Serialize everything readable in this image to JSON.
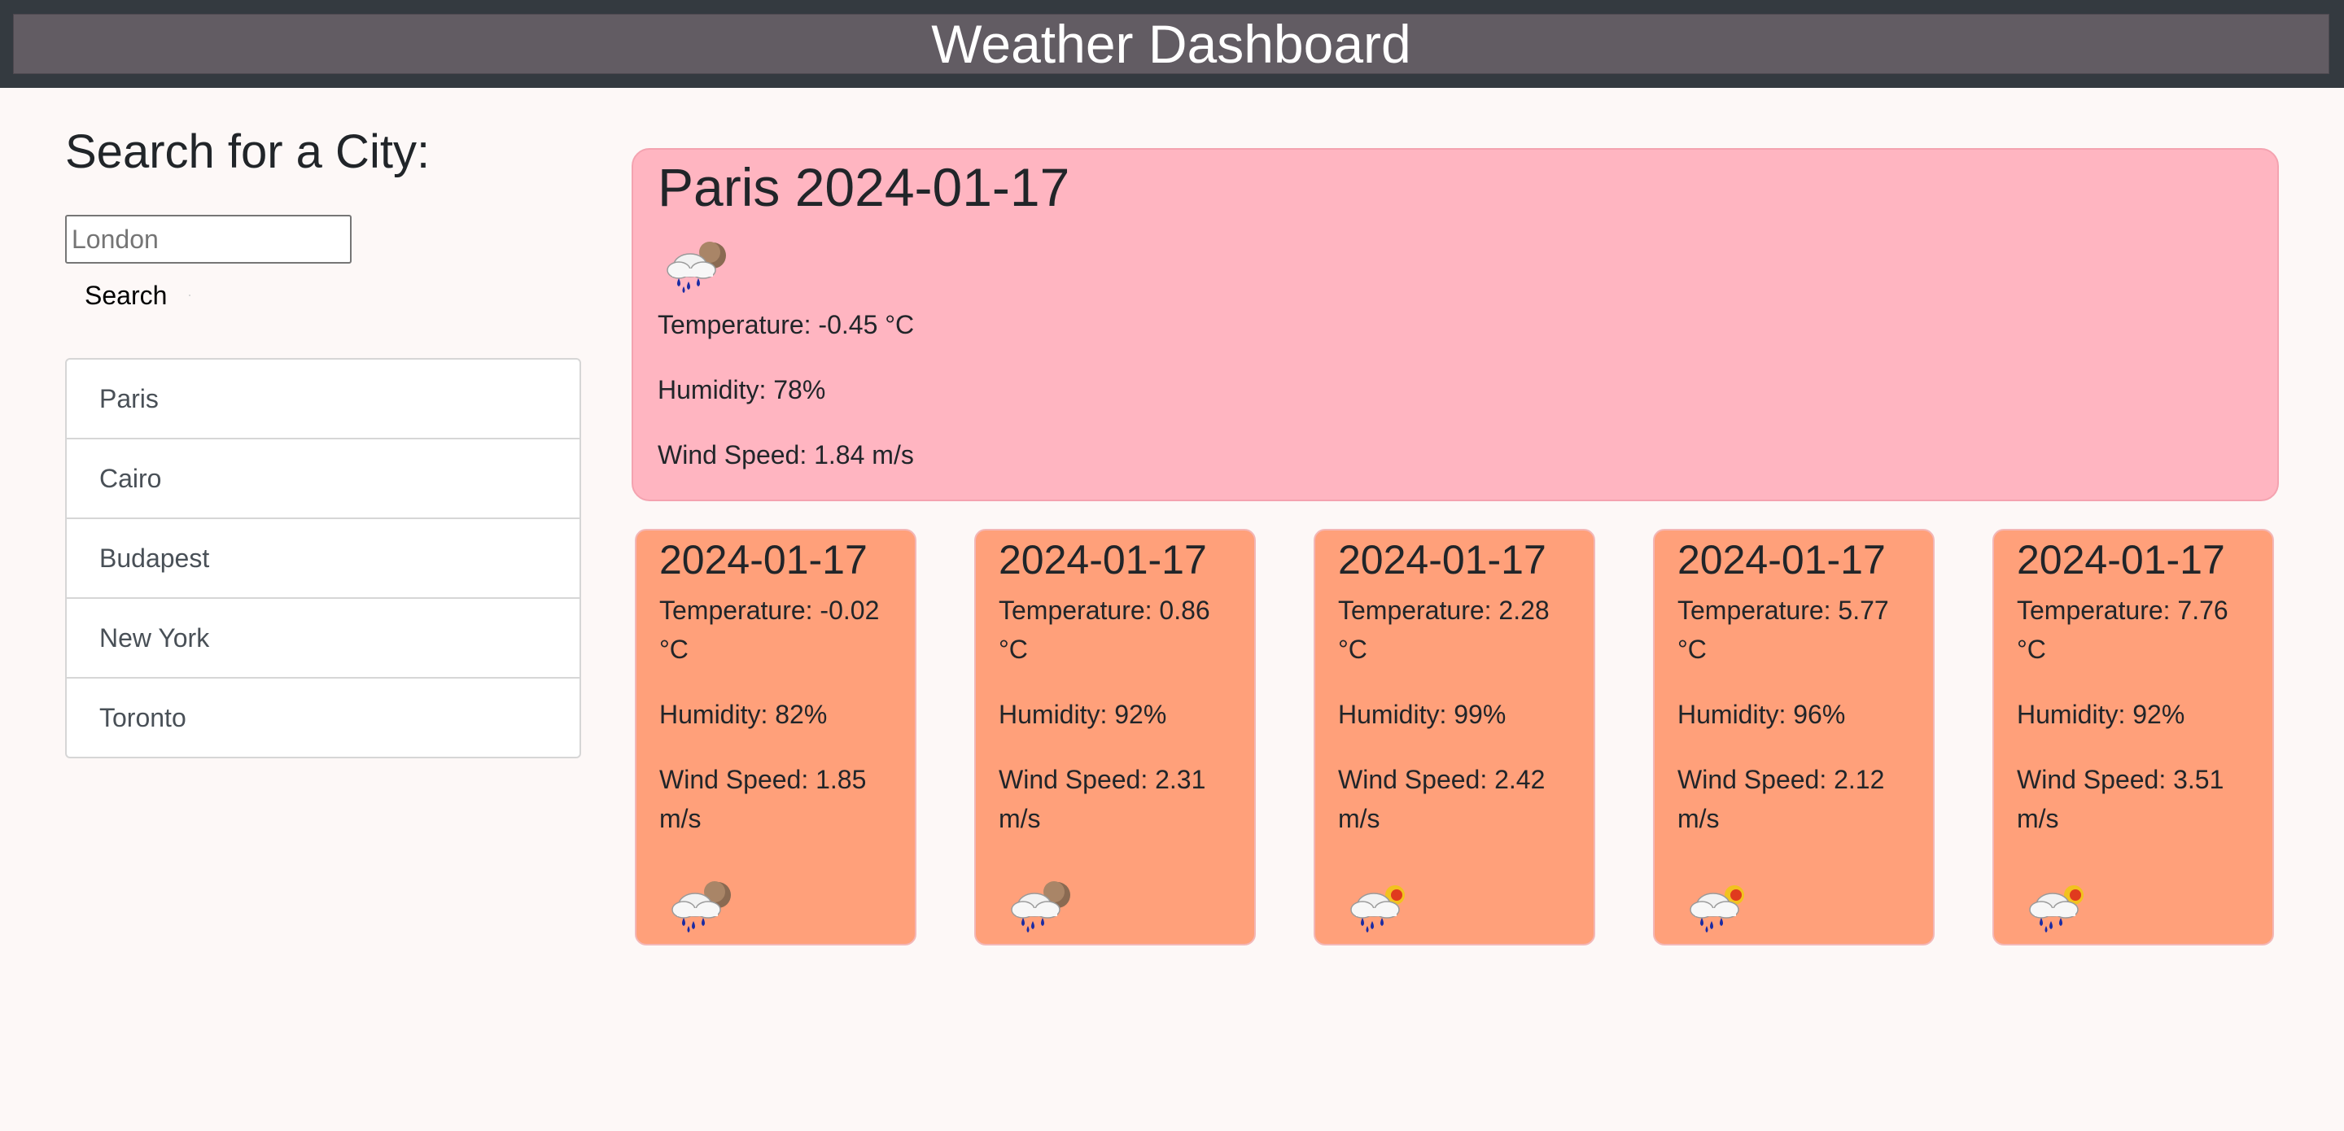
{
  "header": {
    "title": "Weather Dashboard"
  },
  "search": {
    "heading": "Search for a City:",
    "placeholder": "London",
    "button_label": "Search"
  },
  "history": {
    "cities": [
      "Paris",
      "Cairo",
      "Budapest",
      "New York",
      "Toronto"
    ]
  },
  "current": {
    "title": "Paris 2024-01-17",
    "icon": "rain-cloud-night-icon",
    "temperature": "Temperature: -0.45 °C",
    "humidity": "Humidity: 78%",
    "wind": "Wind Speed: 1.84 m/s"
  },
  "forecast": [
    {
      "date": "2024-01-17",
      "temperature": "Temperature: -0.02 °C",
      "humidity": "Humidity: 82%",
      "wind": "Wind Speed: 1.85 m/s",
      "icon": "rain-cloud-night-icon"
    },
    {
      "date": "2024-01-17",
      "temperature": "Temperature: 0.86 °C",
      "humidity": "Humidity: 92%",
      "wind": "Wind Speed: 2.31 m/s",
      "icon": "rain-cloud-night-icon"
    },
    {
      "date": "2024-01-17",
      "temperature": "Temperature: 2.28 °C",
      "humidity": "Humidity: 99%",
      "wind": "Wind Speed: 2.42 m/s",
      "icon": "rain-cloud-sun-icon"
    },
    {
      "date": "2024-01-17",
      "temperature": "Temperature: 5.77 °C",
      "humidity": "Humidity: 96%",
      "wind": "Wind Speed: 2.12 m/s",
      "icon": "rain-cloud-sun-icon"
    },
    {
      "date": "2024-01-17",
      "temperature": "Temperature: 7.76 °C",
      "humidity": "Humidity: 92%",
      "wind": "Wind Speed: 3.51 m/s",
      "icon": "rain-cloud-sun-icon"
    }
  ],
  "colors": {
    "header_bg": "#343a40",
    "header_inner": "#625c63",
    "current_card": "#ffb5c1",
    "forecast_card": "#ffa07a",
    "page_bg": "#fdf8f7"
  }
}
